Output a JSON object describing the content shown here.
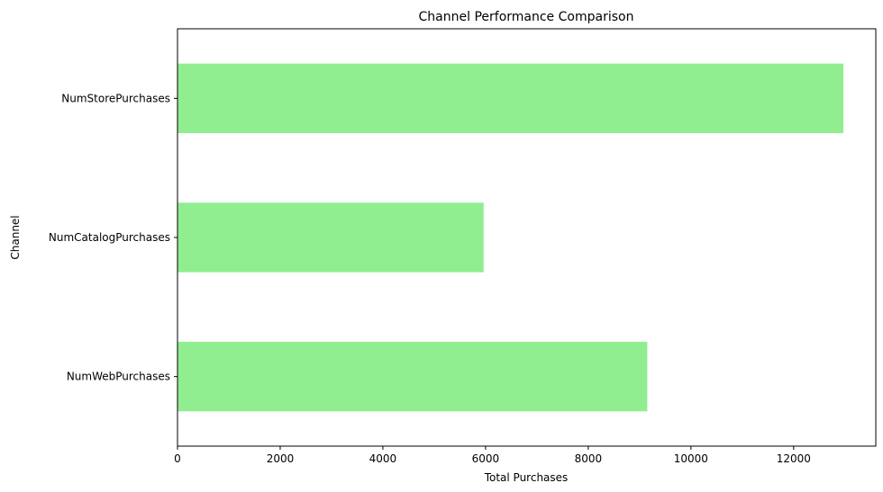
{
  "chart_data": {
    "type": "bar",
    "orientation": "horizontal",
    "title": "Channel Performance Comparison",
    "xlabel": "Total Purchases",
    "ylabel": "Channel",
    "categories": [
      "NumWebPurchases",
      "NumCatalogPurchases",
      "NumStorePurchases"
    ],
    "values": [
      9150,
      5963,
      12970
    ],
    "xlim": [
      0,
      13600
    ],
    "xticks": [
      0,
      2000,
      4000,
      6000,
      8000,
      10000,
      12000
    ],
    "grid": false,
    "legend": "none",
    "bar_color": "#90ee90"
  }
}
